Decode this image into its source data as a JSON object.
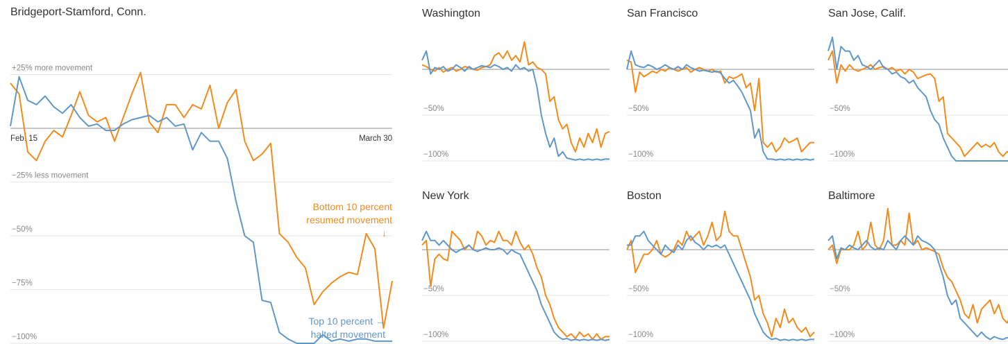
{
  "chart_data": [
    {
      "type": "line",
      "title": "Bridgeport-Stamford, Conn.",
      "categories": [
        "Feb. 15",
        null,
        null,
        null,
        null,
        null,
        null,
        null,
        null,
        null,
        null,
        null,
        null,
        null,
        null,
        null,
        null,
        null,
        null,
        null,
        null,
        null,
        null,
        null,
        null,
        null,
        null,
        null,
        null,
        null,
        null,
        null,
        null,
        null,
        null,
        null,
        null,
        null,
        null,
        null,
        null,
        null,
        null,
        null,
        "March 30"
      ],
      "ylim": [
        -100,
        50
      ],
      "yticks": [
        {
          "value": 25,
          "label": "+25% more movement"
        },
        {
          "value": -25,
          "label": "−25% less movement"
        },
        {
          "value": -50,
          "label": "−50%"
        },
        {
          "value": -75,
          "label": "−75%"
        },
        {
          "value": -100,
          "label": "−100%"
        }
      ],
      "grid": true,
      "series": [
        {
          "color": "#f28b1c",
          "values": [
            21,
            16,
            -11,
            -15,
            -6,
            -1,
            -4,
            6,
            17,
            6,
            3,
            5,
            -6,
            5,
            16,
            26,
            3,
            -2,
            11,
            11,
            5,
            11,
            9,
            20,
            0,
            12,
            18,
            -6,
            -15,
            -12,
            -7,
            -49,
            -53,
            -60,
            -65,
            -82,
            -76,
            -72,
            -69,
            -67,
            -68,
            -49,
            -56,
            -93,
            -71
          ]
        },
        {
          "color": "#5f97c9",
          "values": [
            1,
            24,
            13,
            11,
            15,
            10,
            7,
            11,
            5,
            1,
            2,
            -1,
            -1,
            2,
            4,
            5,
            6,
            3,
            5,
            1,
            2,
            -10,
            -2,
            -6,
            -6,
            -14,
            -34,
            -50,
            -53,
            -80,
            -81,
            -95,
            -98,
            -100,
            -100,
            -100,
            -96,
            -99,
            -98,
            -99,
            -98,
            -98,
            -99,
            -99,
            -99
          ]
        }
      ],
      "annotations": [
        {
          "color": "#f28b1c",
          "lines": [
            "Bottom 10 percent",
            "resumed movement",
            "↓"
          ]
        },
        {
          "color": "#5f97c9",
          "lines": [
            "Top 10 percent →",
            "halted movement"
          ]
        }
      ]
    },
    {
      "type": "line",
      "title": "Washington",
      "ylim": [
        -100,
        50
      ],
      "yticks": [
        {
          "value": -50,
          "label": "−50%"
        },
        {
          "value": -100,
          "label": "−100%"
        }
      ],
      "grid": true,
      "series": [
        {
          "color": "#f28b1c",
          "values": [
            5,
            3,
            0,
            -2,
            2,
            -3,
            0,
            2,
            -2,
            0,
            3,
            2,
            0,
            -1,
            2,
            3,
            5,
            15,
            18,
            12,
            20,
            10,
            15,
            8,
            30,
            5,
            8,
            2,
            0,
            -5,
            -35,
            -30,
            -55,
            -65,
            -60,
            -80,
            -90,
            -75,
            -85,
            -70,
            -80,
            -65,
            -85,
            -70,
            -68
          ]
        },
        {
          "color": "#5f97c9",
          "values": [
            10,
            20,
            -5,
            2,
            0,
            3,
            -2,
            0,
            5,
            2,
            -2,
            3,
            0,
            2,
            4,
            3,
            2,
            5,
            3,
            0,
            2,
            -2,
            5,
            0,
            2,
            -2,
            0,
            -20,
            -50,
            -70,
            -85,
            -75,
            -95,
            -90,
            -97,
            -98,
            -99,
            -98,
            -99,
            -98,
            -99,
            -98,
            -99,
            -98,
            -98
          ]
        }
      ]
    },
    {
      "type": "line",
      "title": "San Francisco",
      "ylim": [
        -100,
        50
      ],
      "yticks": [
        {
          "value": -50,
          "label": "−50%"
        },
        {
          "value": -100,
          "label": "−100%"
        }
      ],
      "grid": true,
      "series": [
        {
          "color": "#f28b1c",
          "values": [
            10,
            8,
            -25,
            -3,
            -8,
            -5,
            -2,
            -4,
            0,
            -2,
            2,
            0,
            -2,
            0,
            2,
            -3,
            0,
            2,
            0,
            -2,
            0,
            -3,
            -2,
            -15,
            -8,
            -10,
            -8,
            -5,
            -20,
            -15,
            -45,
            -10,
            -80,
            -85,
            -80,
            -90,
            -85,
            -75,
            -80,
            -78,
            -75,
            -90,
            -85,
            -80,
            -80
          ]
        },
        {
          "color": "#5f97c9",
          "values": [
            0,
            20,
            5,
            3,
            2,
            5,
            3,
            0,
            2,
            5,
            2,
            0,
            3,
            0,
            5,
            2,
            0,
            -2,
            -1,
            -2,
            -3,
            -2,
            -4,
            -10,
            -15,
            -12,
            -18,
            -25,
            -35,
            -45,
            -75,
            -65,
            -90,
            -98,
            -98,
            -99,
            -98,
            -99,
            -98,
            -99,
            -98,
            -99,
            -98,
            -99,
            -98
          ]
        }
      ]
    },
    {
      "type": "line",
      "title": "San Jose, Calif.",
      "ylim": [
        -100,
        50
      ],
      "yticks": [
        {
          "value": -50,
          "label": "−50%"
        },
        {
          "value": -100,
          "label": "−100%"
        }
      ],
      "grid": true,
      "series": [
        {
          "color": "#f28b1c",
          "values": [
            10,
            20,
            -15,
            5,
            -2,
            5,
            0,
            -2,
            0,
            2,
            5,
            0,
            2,
            3,
            0,
            2,
            -2,
            0,
            -5,
            0,
            -3,
            -10,
            -8,
            -6,
            -5,
            -10,
            -35,
            -30,
            -70,
            -75,
            -80,
            -85,
            -95,
            -90,
            -85,
            -80,
            -85,
            -82,
            -85,
            -80,
            -90,
            -95,
            -90,
            -92,
            -92
          ]
        },
        {
          "color": "#5f97c9",
          "values": [
            20,
            35,
            0,
            25,
            20,
            20,
            10,
            15,
            5,
            3,
            0,
            5,
            10,
            2,
            0,
            -5,
            -3,
            -8,
            -10,
            -15,
            -12,
            -20,
            -25,
            -30,
            -45,
            -55,
            -60,
            -75,
            -85,
            -95,
            -100,
            -100,
            -100,
            -100,
            -100,
            -100,
            -100,
            -100,
            -100,
            -100,
            -100,
            -100,
            -100,
            -100,
            -100
          ]
        }
      ]
    },
    {
      "type": "line",
      "title": "New York",
      "ylim": [
        -100,
        50
      ],
      "yticks": [
        {
          "value": -50,
          "label": "−50%"
        },
        {
          "value": -100,
          "label": "−100%"
        }
      ],
      "grid": true,
      "series": [
        {
          "color": "#f28b1c",
          "values": [
            5,
            10,
            -40,
            -10,
            -5,
            -10,
            -12,
            20,
            15,
            10,
            0,
            5,
            0,
            20,
            15,
            5,
            10,
            8,
            20,
            10,
            10,
            5,
            20,
            8,
            0,
            5,
            -5,
            -20,
            -30,
            -50,
            -60,
            -75,
            -85,
            -90,
            -95,
            -92,
            -97,
            -90,
            -95,
            -92,
            -98,
            -92,
            -98,
            -95,
            -95
          ]
        },
        {
          "color": "#5f97c9",
          "values": [
            10,
            20,
            10,
            10,
            5,
            10,
            5,
            0,
            -3,
            0,
            2,
            5,
            0,
            -2,
            0,
            2,
            0,
            0,
            2,
            0,
            -5,
            0,
            -3,
            -5,
            -15,
            -25,
            -35,
            -45,
            -60,
            -70,
            -80,
            -90,
            -95,
            -98,
            -97,
            -99,
            -98,
            -99,
            -98,
            -99,
            -98,
            -99,
            -98,
            -99,
            -98
          ]
        }
      ]
    },
    {
      "type": "line",
      "title": "Boston",
      "ylim": [
        -100,
        50
      ],
      "yticks": [
        {
          "value": -50,
          "label": "−50%"
        },
        {
          "value": -100,
          "label": "−100%"
        }
      ],
      "grid": true,
      "series": [
        {
          "color": "#f28b1c",
          "values": [
            0,
            10,
            -25,
            -15,
            -5,
            -5,
            0,
            10,
            -5,
            -8,
            -5,
            0,
            10,
            5,
            20,
            10,
            15,
            20,
            5,
            15,
            30,
            10,
            15,
            42,
            20,
            15,
            15,
            0,
            -15,
            -30,
            -55,
            -50,
            -70,
            -80,
            -95,
            -75,
            -85,
            -65,
            -80,
            -75,
            -85,
            -90,
            -85,
            -95,
            -90
          ]
        },
        {
          "color": "#5f97c9",
          "values": [
            5,
            5,
            15,
            15,
            20,
            10,
            5,
            0,
            -5,
            5,
            0,
            -3,
            5,
            0,
            10,
            15,
            8,
            5,
            0,
            5,
            3,
            5,
            2,
            5,
            -5,
            -15,
            -25,
            -35,
            -45,
            -55,
            -70,
            -80,
            -90,
            -95,
            -98,
            -97,
            -99,
            -98,
            -99,
            -98,
            -99,
            -98,
            -99,
            -98,
            -98
          ]
        }
      ]
    },
    {
      "type": "line",
      "title": "Baltimore",
      "ylim": [
        -100,
        50
      ],
      "yticks": [
        {
          "value": -50,
          "label": "−50%"
        },
        {
          "value": -100,
          "label": "−100%"
        }
      ],
      "grid": true,
      "series": [
        {
          "color": "#f28b1c",
          "values": [
            0,
            5,
            -15,
            0,
            0,
            0,
            5,
            20,
            0,
            5,
            30,
            5,
            0,
            10,
            45,
            5,
            5,
            10,
            5,
            40,
            5,
            10,
            0,
            2,
            0,
            -2,
            -5,
            -20,
            -30,
            -35,
            -45,
            -55,
            -70,
            -75,
            -60,
            -80,
            -65,
            -60,
            -55,
            -70,
            -60,
            -75,
            -80,
            -70,
            -70
          ]
        },
        {
          "color": "#5f97c9",
          "values": [
            10,
            15,
            -10,
            2,
            0,
            5,
            2,
            0,
            5,
            10,
            3,
            0,
            2,
            0,
            10,
            5,
            0,
            10,
            15,
            10,
            5,
            15,
            10,
            8,
            5,
            0,
            -15,
            -30,
            -50,
            -60,
            -55,
            -75,
            -80,
            -85,
            -90,
            -95,
            -90,
            -95,
            -98,
            -95,
            -97,
            -98,
            -96,
            -98,
            -97
          ]
        }
      ]
    }
  ]
}
